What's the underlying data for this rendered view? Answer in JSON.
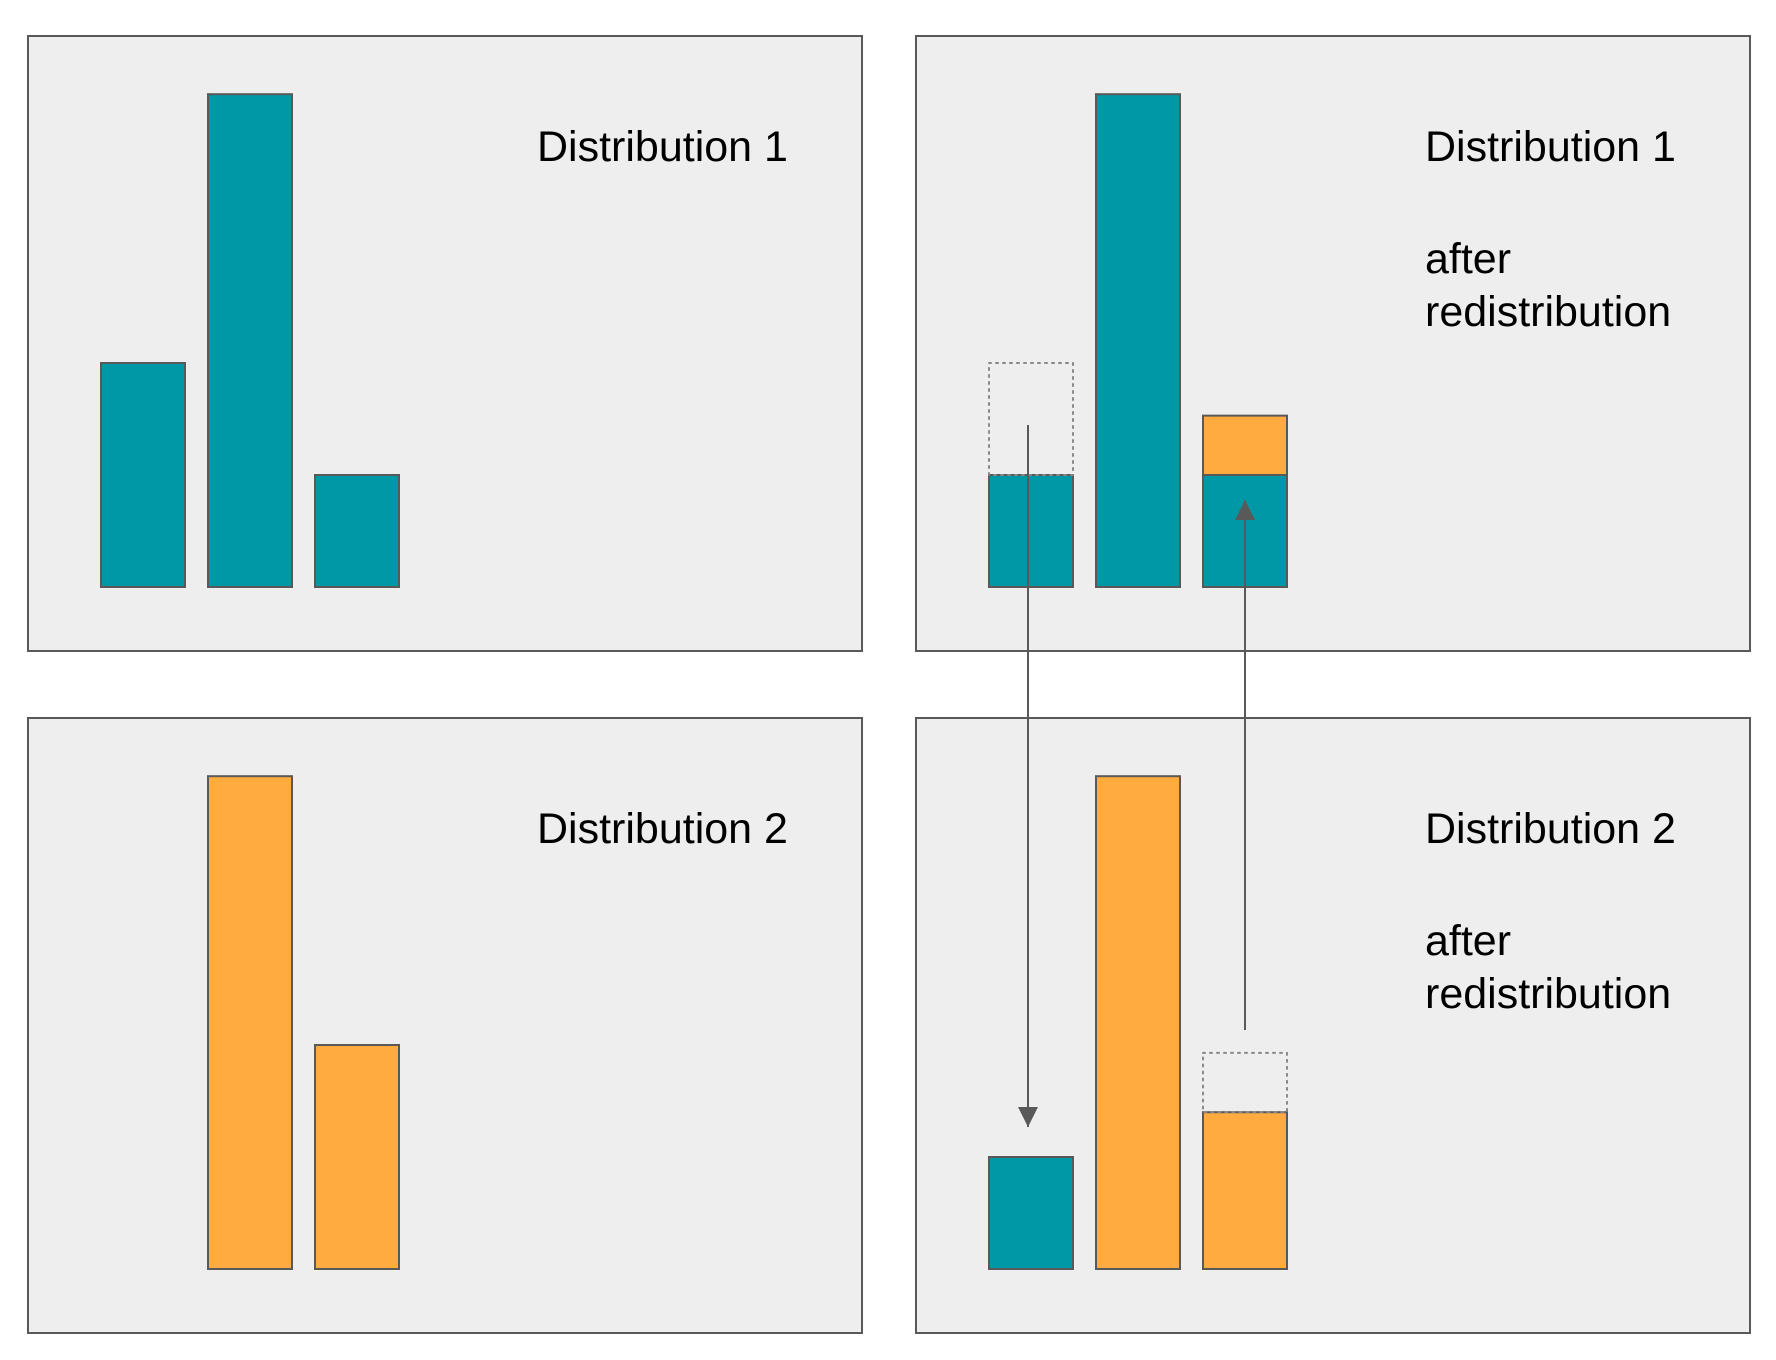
{
  "colors": {
    "teal": "#0097a7",
    "orange": "#ffab40",
    "panel_fill": "#eeeeee",
    "panel_stroke": "#595959",
    "arrow": "#595959"
  },
  "panels": [
    {
      "id": "dist1",
      "title": "Distribution 1",
      "subtitle_lines": [],
      "bars": [
        {
          "segments": [
            {
              "color": "teal",
              "value": 2
            }
          ]
        },
        {
          "segments": [
            {
              "color": "teal",
              "value": 4.4
            }
          ]
        },
        {
          "segments": [
            {
              "color": "teal",
              "value": 1
            }
          ]
        }
      ]
    },
    {
      "id": "dist1-after",
      "title": "Distribution 1",
      "subtitle_lines": [
        "after",
        "redistribution"
      ],
      "bars": [
        {
          "segments": [
            {
              "color": "teal",
              "value": 1
            }
          ],
          "ghost_total": 2
        },
        {
          "segments": [
            {
              "color": "teal",
              "value": 4.4
            }
          ]
        },
        {
          "segments": [
            {
              "color": "teal",
              "value": 1
            },
            {
              "color": "orange",
              "value": 0.53
            }
          ]
        }
      ]
    },
    {
      "id": "dist2",
      "title": "Distribution 2",
      "subtitle_lines": [],
      "bars": [
        {
          "segments": []
        },
        {
          "segments": [
            {
              "color": "orange",
              "value": 4.4
            }
          ]
        },
        {
          "segments": [
            {
              "color": "orange",
              "value": 2
            }
          ]
        }
      ]
    },
    {
      "id": "dist2-after",
      "title": "Distribution 2",
      "subtitle_lines": [
        "after",
        "redistribution"
      ],
      "bars": [
        {
          "segments": [
            {
              "color": "teal",
              "value": 1
            }
          ]
        },
        {
          "segments": [
            {
              "color": "orange",
              "value": 4.4
            }
          ]
        },
        {
          "segments": [
            {
              "color": "orange",
              "value": 1.4
            }
          ],
          "ghost_total": 1.93
        }
      ]
    }
  ],
  "arrows": [
    {
      "from": "dist1-after.bar0",
      "to": "dist2-after.bar0",
      "direction": "down"
    },
    {
      "from": "dist2-after.bar2",
      "to": "dist1-after.bar2",
      "direction": "up"
    }
  ]
}
